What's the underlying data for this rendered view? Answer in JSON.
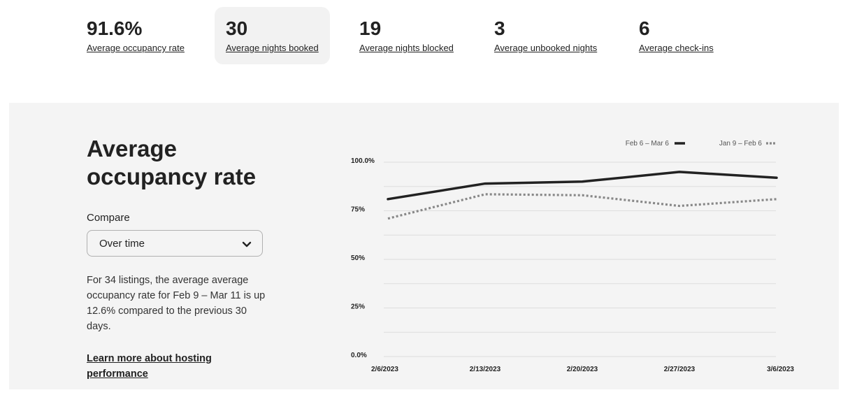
{
  "metrics": [
    {
      "value": "91.6%",
      "label": "Average occupancy rate",
      "selected": false
    },
    {
      "value": "30",
      "label": "Average nights booked",
      "selected": true
    },
    {
      "value": "19",
      "label": "Average nights blocked",
      "selected": false
    },
    {
      "value": "3",
      "label": "Average unbooked nights",
      "selected": false
    },
    {
      "value": "6",
      "label": "Average check-ins",
      "selected": false
    }
  ],
  "panel": {
    "title": "Average occupancy rate",
    "compare_label": "Compare",
    "compare_value": "Over time",
    "description": "For 34 listings, the average average occupancy rate for Feb 9 – Mar 11 is up 12.6% compared to the previous 30 days.",
    "learn_more": "Learn more about hosting performance"
  },
  "chart_data": {
    "type": "line",
    "x": [
      "2/6/2023",
      "2/13/2023",
      "2/20/2023",
      "2/27/2023",
      "3/6/2023"
    ],
    "y_ticks": [
      "100.0%",
      "75%",
      "50%",
      "25%",
      "0.0%"
    ],
    "ylim": [
      0,
      100
    ],
    "grid": true,
    "legend_position": "top-right",
    "series": [
      {
        "name": "Feb 6 – Mar 6",
        "style": "solid",
        "color": "#222222",
        "values": [
          81,
          89,
          90,
          95,
          92
        ]
      },
      {
        "name": "Jan 9 – Feb 6",
        "style": "dotted",
        "color": "#888888",
        "values": [
          71,
          83.5,
          83,
          77.5,
          81
        ]
      }
    ]
  }
}
